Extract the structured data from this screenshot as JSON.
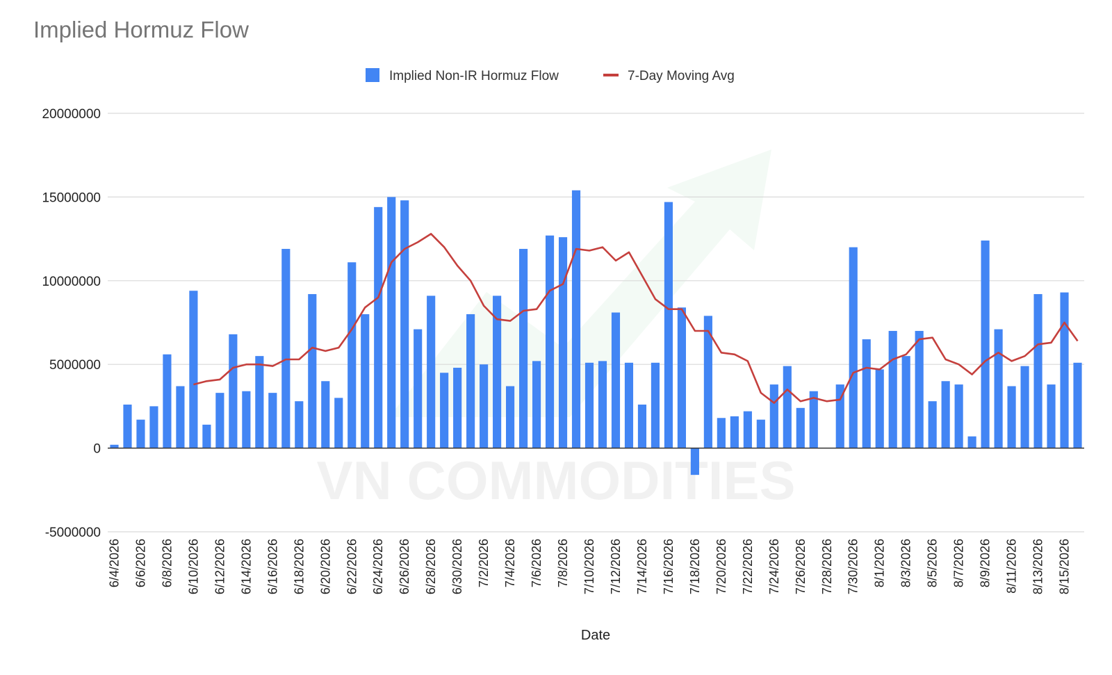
{
  "chart_data": {
    "type": "bar",
    "title": "Implied Hormuz Flow",
    "xlabel": "Date",
    "ylabel": "",
    "ylim": [
      -5000000,
      20000000
    ],
    "yticks": [
      20000000,
      15000000,
      10000000,
      5000000,
      0,
      -5000000
    ],
    "grid": true,
    "legend_position": "top",
    "watermark": "VN COMMODITIES",
    "colors": {
      "bars": "#4285f4",
      "line": "#c5403d",
      "grid": "#d9d9d9",
      "axis": "#333333"
    },
    "categories": [
      "6/4/2026",
      "6/5/2026",
      "6/6/2026",
      "6/7/2026",
      "6/8/2026",
      "6/9/2026",
      "6/10/2026",
      "6/11/2026",
      "6/12/2026",
      "6/13/2026",
      "6/14/2026",
      "6/15/2026",
      "6/16/2026",
      "6/17/2026",
      "6/18/2026",
      "6/19/2026",
      "6/20/2026",
      "6/21/2026",
      "6/22/2026",
      "6/23/2026",
      "6/24/2026",
      "6/25/2026",
      "6/26/2026",
      "6/27/2026",
      "6/28/2026",
      "6/29/2026",
      "6/30/2026",
      "7/1/2026",
      "7/2/2026",
      "7/3/2026",
      "7/4/2026",
      "7/5/2026",
      "7/6/2026",
      "7/7/2026",
      "7/8/2026",
      "7/9/2026",
      "7/10/2026",
      "7/11/2026",
      "7/12/2026",
      "7/13/2026",
      "7/14/2026",
      "7/15/2026",
      "7/16/2026",
      "7/17/2026",
      "7/18/2026",
      "7/19/2026",
      "7/20/2026",
      "7/21/2026",
      "7/22/2026",
      "7/23/2026",
      "7/24/2026",
      "7/25/2026",
      "7/26/2026",
      "7/27/2026",
      "7/28/2026",
      "7/29/2026",
      "7/30/2026",
      "7/31/2026",
      "8/1/2026",
      "8/2/2026",
      "8/3/2026",
      "8/4/2026",
      "8/5/2026",
      "8/6/2026",
      "8/7/2026",
      "8/8/2026",
      "8/9/2026",
      "8/10/2026",
      "8/11/2026",
      "8/12/2026",
      "8/13/2026",
      "8/14/2026",
      "8/15/2026",
      "8/16/2026"
    ],
    "series": [
      {
        "name": "Implied Non-IR Hormuz Flow",
        "type": "bar",
        "values": [
          200000,
          2600000,
          1700000,
          2500000,
          5600000,
          3700000,
          9400000,
          1400000,
          3300000,
          6800000,
          3400000,
          5500000,
          3300000,
          11900000,
          2800000,
          9200000,
          4000000,
          3000000,
          11100000,
          8000000,
          14400000,
          15000000,
          14800000,
          7100000,
          9100000,
          4500000,
          4800000,
          8000000,
          5000000,
          9100000,
          3700000,
          11900000,
          5200000,
          12700000,
          12600000,
          15400000,
          5100000,
          5200000,
          8100000,
          5100000,
          2600000,
          5100000,
          14700000,
          8400000,
          -1600000,
          7900000,
          1800000,
          1900000,
          2200000,
          1700000,
          3800000,
          4900000,
          2400000,
          3400000,
          0,
          3800000,
          12000000,
          6500000,
          4700000,
          7000000,
          5500000,
          7000000,
          2800000,
          4000000,
          3800000,
          700000,
          12400000,
          7100000,
          3700000,
          4900000,
          9200000,
          3800000,
          9300000,
          5100000
        ]
      },
      {
        "name": "7-Day Moving Avg",
        "type": "line",
        "values": [
          null,
          null,
          null,
          null,
          null,
          null,
          3800000,
          4000000,
          4100000,
          4800000,
          5000000,
          5000000,
          4900000,
          5300000,
          5300000,
          6000000,
          5800000,
          6000000,
          7100000,
          8400000,
          9000000,
          11100000,
          11900000,
          12300000,
          12800000,
          12000000,
          10900000,
          10000000,
          8500000,
          7700000,
          7600000,
          8200000,
          8300000,
          9400000,
          9800000,
          11900000,
          11800000,
          12000000,
          11200000,
          11700000,
          10300000,
          8900000,
          8300000,
          8300000,
          7000000,
          7000000,
          5700000,
          5600000,
          5200000,
          3300000,
          2700000,
          3500000,
          2800000,
          3000000,
          2800000,
          2900000,
          4500000,
          4800000,
          4700000,
          5300000,
          5600000,
          6500000,
          6600000,
          5300000,
          5000000,
          4400000,
          5200000,
          5700000,
          5200000,
          5500000,
          6200000,
          6300000,
          7500000,
          6400000
        ]
      }
    ]
  }
}
